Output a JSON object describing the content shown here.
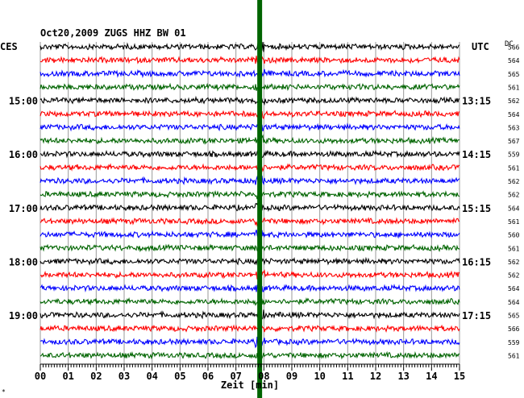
{
  "chart_data": {
    "type": "line",
    "title": "Oct20,2009   ZUGS HHZ BW 01",
    "left_label": "CES",
    "right_label": "UTC",
    "dc_label": "DC",
    "xlabel": "Zeit [min]",
    "corner_mark": "*",
    "xlim": [
      0,
      15
    ],
    "x_ticks": [
      "00",
      "01",
      "02",
      "03",
      "04",
      "05",
      "06",
      "07",
      "08",
      "09",
      "10",
      "11",
      "12",
      "13",
      "14",
      "15"
    ],
    "trace_colors": [
      "#000000",
      "#ff0000",
      "#0000ff",
      "#006400"
    ],
    "trace_count": 24,
    "left_time_labels": [
      {
        "row": 4,
        "text": "15:00"
      },
      {
        "row": 8,
        "text": "16:00"
      },
      {
        "row": 12,
        "text": "17:00"
      },
      {
        "row": 16,
        "text": "18:00"
      },
      {
        "row": 20,
        "text": "19:00"
      }
    ],
    "right_time_labels": [
      {
        "row": 4,
        "text": "13:15"
      },
      {
        "row": 8,
        "text": "14:15"
      },
      {
        "row": 12,
        "text": "15:15"
      },
      {
        "row": 16,
        "text": "16:15"
      },
      {
        "row": 20,
        "text": "17:15"
      }
    ],
    "dc_values": [
      "566",
      "564",
      "565",
      "561",
      "562",
      "564",
      "563",
      "567",
      "559",
      "561",
      "562",
      "562",
      "564",
      "561",
      "560",
      "561",
      "562",
      "562",
      "564",
      "564",
      "565",
      "566",
      "559",
      "561"
    ],
    "event": {
      "minute": 7.85,
      "color": "#006400"
    }
  }
}
